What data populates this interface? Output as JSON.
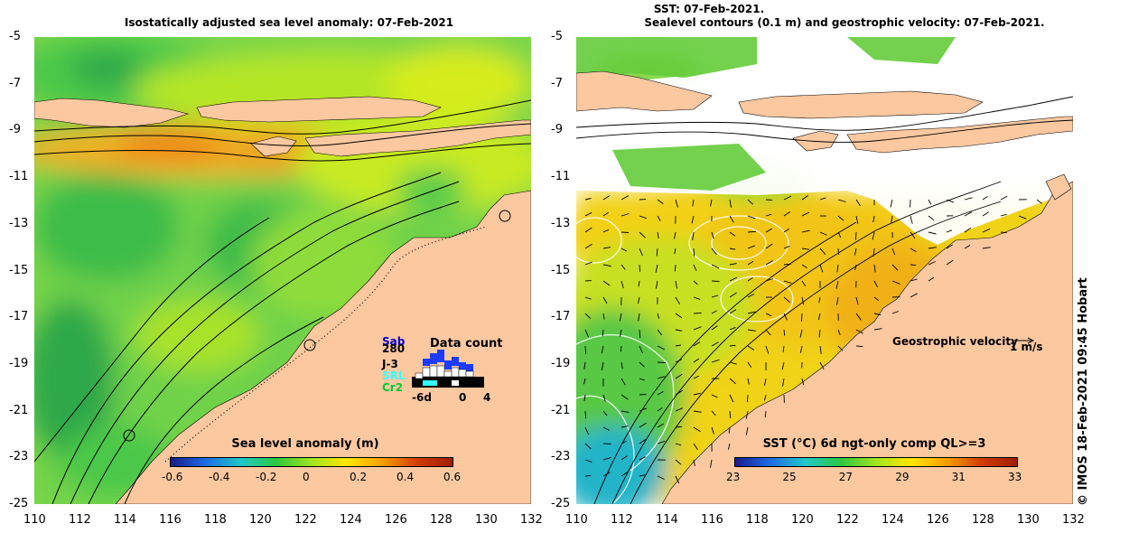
{
  "left_map": {
    "title": "Isostatically adjusted sea level anomaly: 07-Feb-2021",
    "colorbar": {
      "title": "Sea level anomaly (m)",
      "ticks": [
        "-0.6",
        "-0.4",
        "-0.2",
        "0",
        "0.2",
        "0.4",
        "0.6"
      ]
    },
    "inset": {
      "title": "Data count",
      "satellites": [
        {
          "name": "Sab",
          "color": "#0000cc"
        },
        {
          "name": "280",
          "color": "#000000"
        },
        {
          "name": "J-3",
          "color": "#000000"
        },
        {
          "name": "SRL",
          "color": "#33ffff"
        },
        {
          "name": "Cr2",
          "color": "#00cc33"
        }
      ],
      "axis": [
        "-6d",
        "0",
        "4"
      ]
    }
  },
  "right_map": {
    "title_line1": "SST: 07-Feb-2021.",
    "title_line2": "Sealevel contours (0.1 m) and geostrophic velocity: 07-Feb-2021.",
    "colorbar": {
      "title": "SST (°C) 6d ngt-only comp QL>=3",
      "ticks": [
        "23",
        "25",
        "27",
        "29",
        "31",
        "33"
      ]
    },
    "velocity_legend": {
      "label": "Geostrophic velocity",
      "scale": "1 m/s"
    }
  },
  "axes": {
    "x_ticks": [
      "110",
      "112",
      "114",
      "116",
      "118",
      "120",
      "122",
      "124",
      "126",
      "128",
      "130",
      "132"
    ],
    "y_ticks": [
      "-5",
      "-7",
      "-9",
      "-11",
      "-13",
      "-15",
      "-17",
      "-19",
      "-21",
      "-23",
      "-25"
    ],
    "lon_range": [
      110,
      132
    ],
    "lat_range": [
      -25,
      -5
    ]
  },
  "credit": "© IMOS 18-Feb-2021 09:45 Hobart",
  "colors": {
    "land": "#fcc8a0",
    "sla_scale": [
      "#1a1a8c",
      "#1e6ee6",
      "#20c8c8",
      "#2ec840",
      "#a0e620",
      "#ffe600",
      "#f5a000",
      "#d23c00",
      "#a01e00"
    ],
    "sst_scale": [
      "#1a1a8c",
      "#1e6ee6",
      "#20c8c8",
      "#2ec840",
      "#a0e620",
      "#ffe600",
      "#f5a000",
      "#d23c00",
      "#a01e00"
    ]
  }
}
